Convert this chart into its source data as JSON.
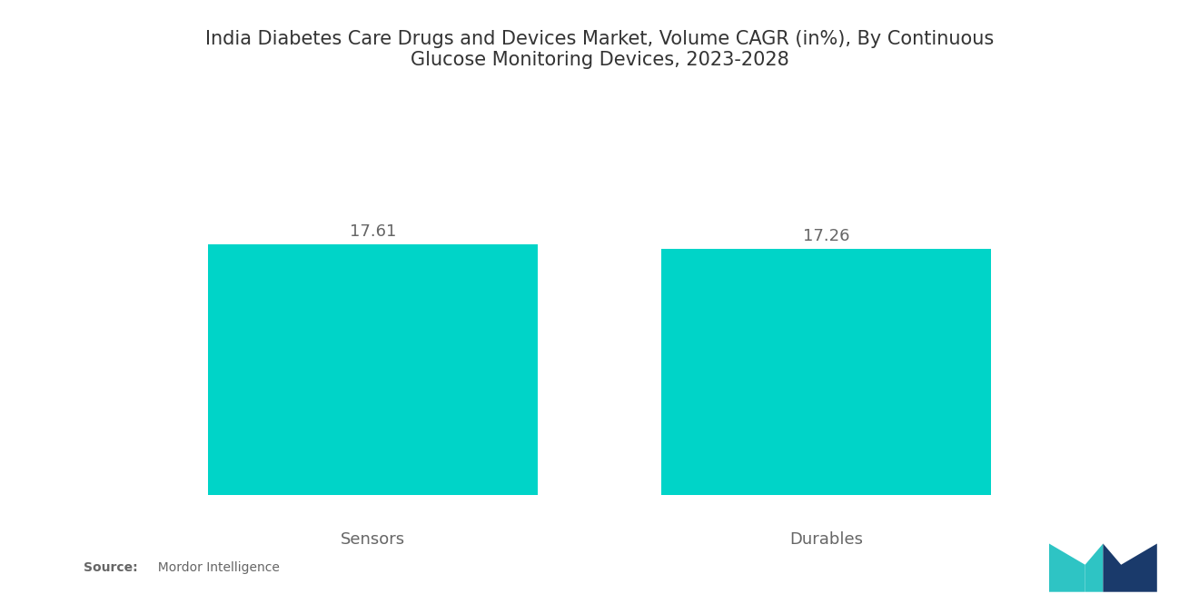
{
  "title": "India Diabetes Care Drugs and Devices Market, Volume CAGR (in%), By Continuous\nGlucose Monitoring Devices, 2023-2028",
  "categories": [
    "Sensors",
    "Durables"
  ],
  "values": [
    17.61,
    17.26
  ],
  "bar_color": "#00D4C8",
  "bar_width": 0.32,
  "value_labels": [
    "17.61",
    "17.26"
  ],
  "background_color": "#ffffff",
  "title_fontsize": 15,
  "label_fontsize": 13,
  "value_fontsize": 13,
  "source_bold": "Source:",
  "source_rest": "  Mordor Intelligence",
  "ylim": [
    0,
    22
  ],
  "text_color": "#666666",
  "x_positions": [
    0.28,
    0.72
  ]
}
